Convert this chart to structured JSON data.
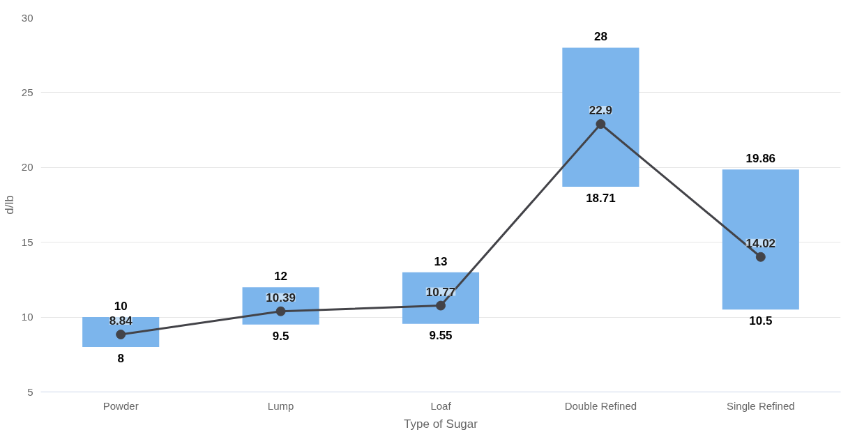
{
  "chart_data": {
    "type": "bar",
    "xlabel": "Type of Sugar",
    "ylabel": "d/lb",
    "categories": [
      "Powder",
      "Lump",
      "Loaf",
      "Double Refined",
      "Single Refined"
    ],
    "series": [
      {
        "color": "#7cb5ec",
        "base": [
          8,
          9.5,
          9.55,
          18.71,
          10.5
        ],
        "values": [
          2,
          2.5,
          3.45,
          9.29,
          9.36
        ]
      },
      {
        "type": "line",
        "color": "#434348",
        "marker": "circle",
        "values": [
          8.84,
          10.39,
          10.77,
          22.9,
          14.02
        ],
        "value_labels": [
          "8.84",
          "10.39",
          "10.77",
          "22.9",
          "14.02"
        ]
      }
    ],
    "annotations": [
      {
        "text": "10",
        "x": "Powder",
        "y": 10
      },
      {
        "text": "8",
        "x": "Powder",
        "y": 8
      },
      {
        "text": "12",
        "x": "Lump",
        "y": 12
      },
      {
        "text": "9.5",
        "x": "Lump",
        "y": 9.5
      },
      {
        "text": "13",
        "x": "Loaf",
        "y": 13
      },
      {
        "text": "9.55",
        "x": "Loaf",
        "y": 9.55
      },
      {
        "text": "28",
        "x": "Double Refined",
        "y": 28
      },
      {
        "text": "18.71",
        "x": "Double Refined",
        "y": 18.71
      },
      {
        "text": "19.86",
        "x": "Single Refined",
        "y": 19.86
      },
      {
        "text": "10.5",
        "x": "Single Refined",
        "y": 10.5
      }
    ],
    "ylim": [
      5,
      30
    ],
    "yticks": [
      5,
      10,
      15,
      20,
      25,
      30
    ],
    "grid": "y"
  }
}
